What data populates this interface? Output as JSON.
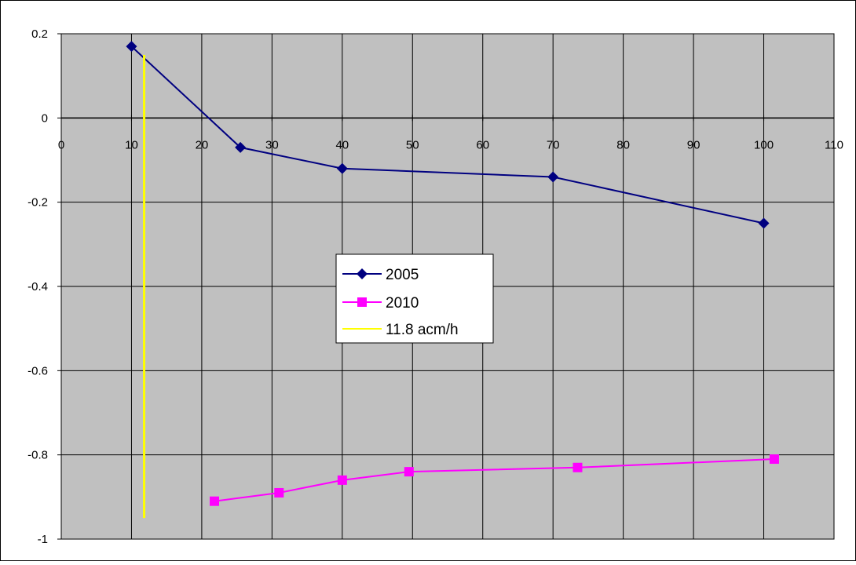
{
  "chart_data": {
    "type": "line",
    "xlim": [
      0,
      110
    ],
    "ylim": [
      -1,
      0.2
    ],
    "x_ticks": [
      0,
      10,
      20,
      30,
      40,
      50,
      60,
      70,
      80,
      90,
      100,
      110
    ],
    "y_ticks": [
      0.2,
      0,
      -0.2,
      -0.4,
      -0.6,
      -0.8,
      -1
    ],
    "x_tick_labels": [
      "0",
      "10",
      "20",
      "30",
      "40",
      "50",
      "60",
      "70",
      "80",
      "90",
      "100",
      "110"
    ],
    "y_tick_labels": [
      "0.2",
      "0",
      "-0.2",
      "-0.4",
      "-0.6",
      "-0.8",
      "-1"
    ],
    "grid": true,
    "plot_background": "#c0c0c0",
    "legend_position": "center",
    "series": [
      {
        "name": "2005",
        "color": "#000080",
        "marker": "diamond",
        "x": [
          10,
          25.5,
          40,
          70,
          100
        ],
        "y": [
          0.17,
          -0.07,
          -0.12,
          -0.14,
          -0.25
        ]
      },
      {
        "name": "2010",
        "color": "#ff00ff",
        "marker": "square",
        "x": [
          21.8,
          31,
          40,
          49.5,
          73.5,
          101.5
        ],
        "y": [
          -0.91,
          -0.89,
          -0.86,
          -0.84,
          -0.83,
          -0.81
        ]
      },
      {
        "name": "11.8 acm/h",
        "color": "#ffff00",
        "marker": "none",
        "x": [
          11.8,
          11.8
        ],
        "y": [
          0.15,
          -0.95
        ]
      }
    ]
  }
}
